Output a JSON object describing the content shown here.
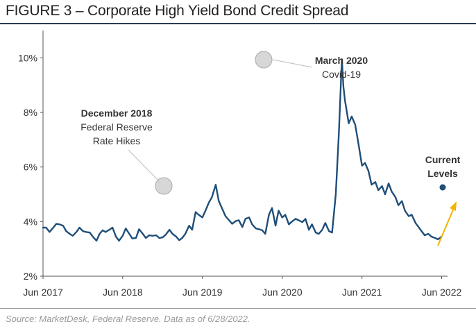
{
  "title": "FIGURE 3 – Corporate High Yield Bond Credit Spread",
  "source": "Source: MarketDesk, Federal Reserve. Data as of 6/28/2022.",
  "colors": {
    "line": "#1f4e79",
    "arrow": "#f5b400",
    "marker": "#d0d0d0",
    "title_rule": "#2b3a55"
  },
  "chart_data": {
    "type": "line",
    "xlabel": "",
    "ylabel": "",
    "ylim": [
      2,
      11
    ],
    "xlim": [
      "2017-06-01",
      "2022-06-28"
    ],
    "yticks": [
      2,
      4,
      6,
      8,
      10
    ],
    "ytick_labels": [
      "2%",
      "4%",
      "6%",
      "8%",
      "10%"
    ],
    "xticks": [
      "2017-06-01",
      "2018-06-01",
      "2019-06-01",
      "2020-06-01",
      "2021-06-01",
      "2022-06-01"
    ],
    "xtick_labels": [
      "Jun 2017",
      "Jun 2018",
      "Jun 2019",
      "Jun 2020",
      "Jun 2021",
      "Jun 2022"
    ],
    "grid": false,
    "legend": "none",
    "series": [
      {
        "points": [
          [
            "2017-06-01",
            3.78
          ],
          [
            "2017-06-15",
            3.78
          ],
          [
            "2017-07-01",
            3.62
          ],
          [
            "2017-07-15",
            3.75
          ],
          [
            "2017-08-01",
            3.92
          ],
          [
            "2017-08-15",
            3.9
          ],
          [
            "2017-09-01",
            3.85
          ],
          [
            "2017-09-15",
            3.65
          ],
          [
            "2017-10-01",
            3.55
          ],
          [
            "2017-10-15",
            3.48
          ],
          [
            "2017-11-01",
            3.62
          ],
          [
            "2017-11-15",
            3.78
          ],
          [
            "2017-12-01",
            3.65
          ],
          [
            "2017-12-15",
            3.62
          ],
          [
            "2018-01-01",
            3.6
          ],
          [
            "2018-01-15",
            3.45
          ],
          [
            "2018-02-01",
            3.3
          ],
          [
            "2018-02-15",
            3.55
          ],
          [
            "2018-03-01",
            3.68
          ],
          [
            "2018-03-15",
            3.62
          ],
          [
            "2018-04-01",
            3.7
          ],
          [
            "2018-04-15",
            3.78
          ],
          [
            "2018-05-01",
            3.45
          ],
          [
            "2018-05-15",
            3.3
          ],
          [
            "2018-06-01",
            3.48
          ],
          [
            "2018-06-15",
            3.75
          ],
          [
            "2018-07-01",
            3.55
          ],
          [
            "2018-07-15",
            3.38
          ],
          [
            "2018-08-01",
            3.4
          ],
          [
            "2018-08-15",
            3.72
          ],
          [
            "2018-09-01",
            3.55
          ],
          [
            "2018-09-15",
            3.4
          ],
          [
            "2018-10-01",
            3.5
          ],
          [
            "2018-10-15",
            3.48
          ],
          [
            "2018-11-01",
            3.5
          ],
          [
            "2018-11-15",
            3.4
          ],
          [
            "2018-12-01",
            3.42
          ],
          [
            "2018-12-15",
            3.52
          ],
          [
            "2019-01-01",
            3.7
          ],
          [
            "2019-01-15",
            3.55
          ],
          [
            "2019-02-01",
            3.45
          ],
          [
            "2019-02-15",
            3.32
          ],
          [
            "2019-03-01",
            3.4
          ],
          [
            "2019-03-15",
            3.55
          ],
          [
            "2019-04-01",
            3.85
          ],
          [
            "2019-04-15",
            3.7
          ],
          [
            "2019-05-01",
            4.35
          ],
          [
            "2019-05-15",
            4.25
          ],
          [
            "2019-06-01",
            4.15
          ],
          [
            "2019-06-15",
            4.4
          ],
          [
            "2019-07-01",
            4.7
          ],
          [
            "2019-07-15",
            4.9
          ],
          [
            "2019-08-01",
            5.35
          ],
          [
            "2019-08-15",
            4.75
          ],
          [
            "2019-09-01",
            4.45
          ],
          [
            "2019-09-15",
            4.2
          ],
          [
            "2019-10-01",
            4.05
          ],
          [
            "2019-10-15",
            3.92
          ],
          [
            "2019-11-01",
            4.02
          ],
          [
            "2019-11-15",
            4.05
          ],
          [
            "2019-12-01",
            3.8
          ],
          [
            "2019-12-15",
            4.1
          ],
          [
            "2020-01-01",
            4.15
          ],
          [
            "2020-01-15",
            3.9
          ],
          [
            "2020-02-01",
            3.75
          ],
          [
            "2020-02-15",
            3.72
          ],
          [
            "2020-03-01",
            3.68
          ],
          [
            "2020-03-15",
            3.55
          ],
          [
            "2020-04-01",
            4.25
          ],
          [
            "2020-04-15",
            4.5
          ],
          [
            "2020-05-01",
            3.85
          ],
          [
            "2020-05-15",
            4.4
          ],
          [
            "2020-06-01",
            4.15
          ],
          [
            "2020-06-15",
            4.25
          ],
          [
            "2020-07-01",
            3.9
          ],
          [
            "2020-07-15",
            4.0
          ],
          [
            "2020-08-01",
            4.1
          ],
          [
            "2020-08-15",
            4.05
          ],
          [
            "2020-09-01",
            3.98
          ],
          [
            "2020-09-15",
            4.1
          ],
          [
            "2020-10-01",
            3.7
          ],
          [
            "2020-10-15",
            3.9
          ],
          [
            "2020-11-01",
            3.6
          ],
          [
            "2020-11-15",
            3.55
          ],
          [
            "2020-12-01",
            3.7
          ],
          [
            "2020-12-15",
            3.95
          ],
          [
            "2021-01-01",
            3.65
          ],
          [
            "2021-01-15",
            3.6
          ],
          [
            "2021-02-01",
            5.0
          ],
          [
            "2021-02-15",
            7.2
          ],
          [
            "2021-03-01",
            9.95
          ],
          [
            "2021-03-08",
            8.95
          ],
          [
            "2021-03-15",
            8.45
          ],
          [
            "2021-04-01",
            7.6
          ],
          [
            "2021-04-15",
            7.85
          ],
          [
            "2021-05-01",
            7.55
          ],
          [
            "2021-05-15",
            6.9
          ],
          [
            "2021-06-01",
            6.05
          ],
          [
            "2021-06-15",
            6.15
          ],
          [
            "2021-07-01",
            5.85
          ],
          [
            "2021-07-15",
            5.35
          ],
          [
            "2021-08-01",
            5.45
          ],
          [
            "2021-08-15",
            5.15
          ],
          [
            "2021-09-01",
            5.3
          ],
          [
            "2021-09-15",
            5.0
          ],
          [
            "2021-10-01",
            5.4
          ],
          [
            "2021-10-15",
            5.1
          ],
          [
            "2021-11-01",
            4.9
          ],
          [
            "2021-11-15",
            4.6
          ],
          [
            "2021-12-01",
            4.75
          ],
          [
            "2021-12-15",
            4.4
          ],
          [
            "2022-01-01",
            4.2
          ],
          [
            "2022-01-15",
            4.25
          ],
          [
            "2022-02-01",
            3.95
          ],
          [
            "2022-02-15",
            3.8
          ],
          [
            "2022-03-01",
            3.65
          ],
          [
            "2022-03-15",
            3.5
          ],
          [
            "2022-04-01",
            3.55
          ],
          [
            "2022-04-15",
            3.45
          ],
          [
            "2022-05-01",
            3.4
          ],
          [
            "2022-05-15",
            3.35
          ],
          [
            "2022-06-01",
            3.45
          ]
        ]
      }
    ],
    "annotations": [
      {
        "title": "December 2018",
        "lines": [
          "Federal Reserve",
          "Rate Hikes"
        ]
      },
      {
        "title": "March 2020",
        "lines": [
          "Covid-19"
        ]
      },
      {
        "title": "Current",
        "lines": [
          "Levels"
        ]
      }
    ]
  }
}
